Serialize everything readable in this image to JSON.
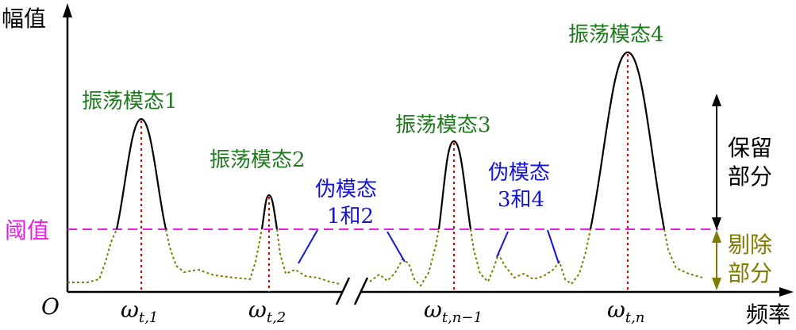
{
  "axes": {
    "y_label": "幅值",
    "x_label": "频率",
    "origin": "O",
    "threshold_label": "阈值"
  },
  "peaks": [
    {
      "label": "振荡模态1",
      "omega": "ω",
      "sub": "t,1"
    },
    {
      "label": "振荡模态2",
      "omega": "ω",
      "sub": "t,2"
    },
    {
      "label": "振荡模态3",
      "omega": "ω",
      "sub": "t,n−1"
    },
    {
      "label": "振荡模态4",
      "omega": "ω",
      "sub": "t,n"
    }
  ],
  "pseudo": [
    {
      "line1": "伪模态",
      "line2": "1和2"
    },
    {
      "line1": "伪模态",
      "line2": "3和4"
    }
  ],
  "regions": {
    "keep_line1": "保留",
    "keep_line2": "部分",
    "remove_line1": "剔除",
    "remove_line2": "部分"
  },
  "colors": {
    "mode_label": "#1f7a1f",
    "pseudo_label": "#1414d6",
    "threshold": "#e61ee6",
    "noise": "#7f7a00",
    "peak_marker": "#e00000"
  }
}
